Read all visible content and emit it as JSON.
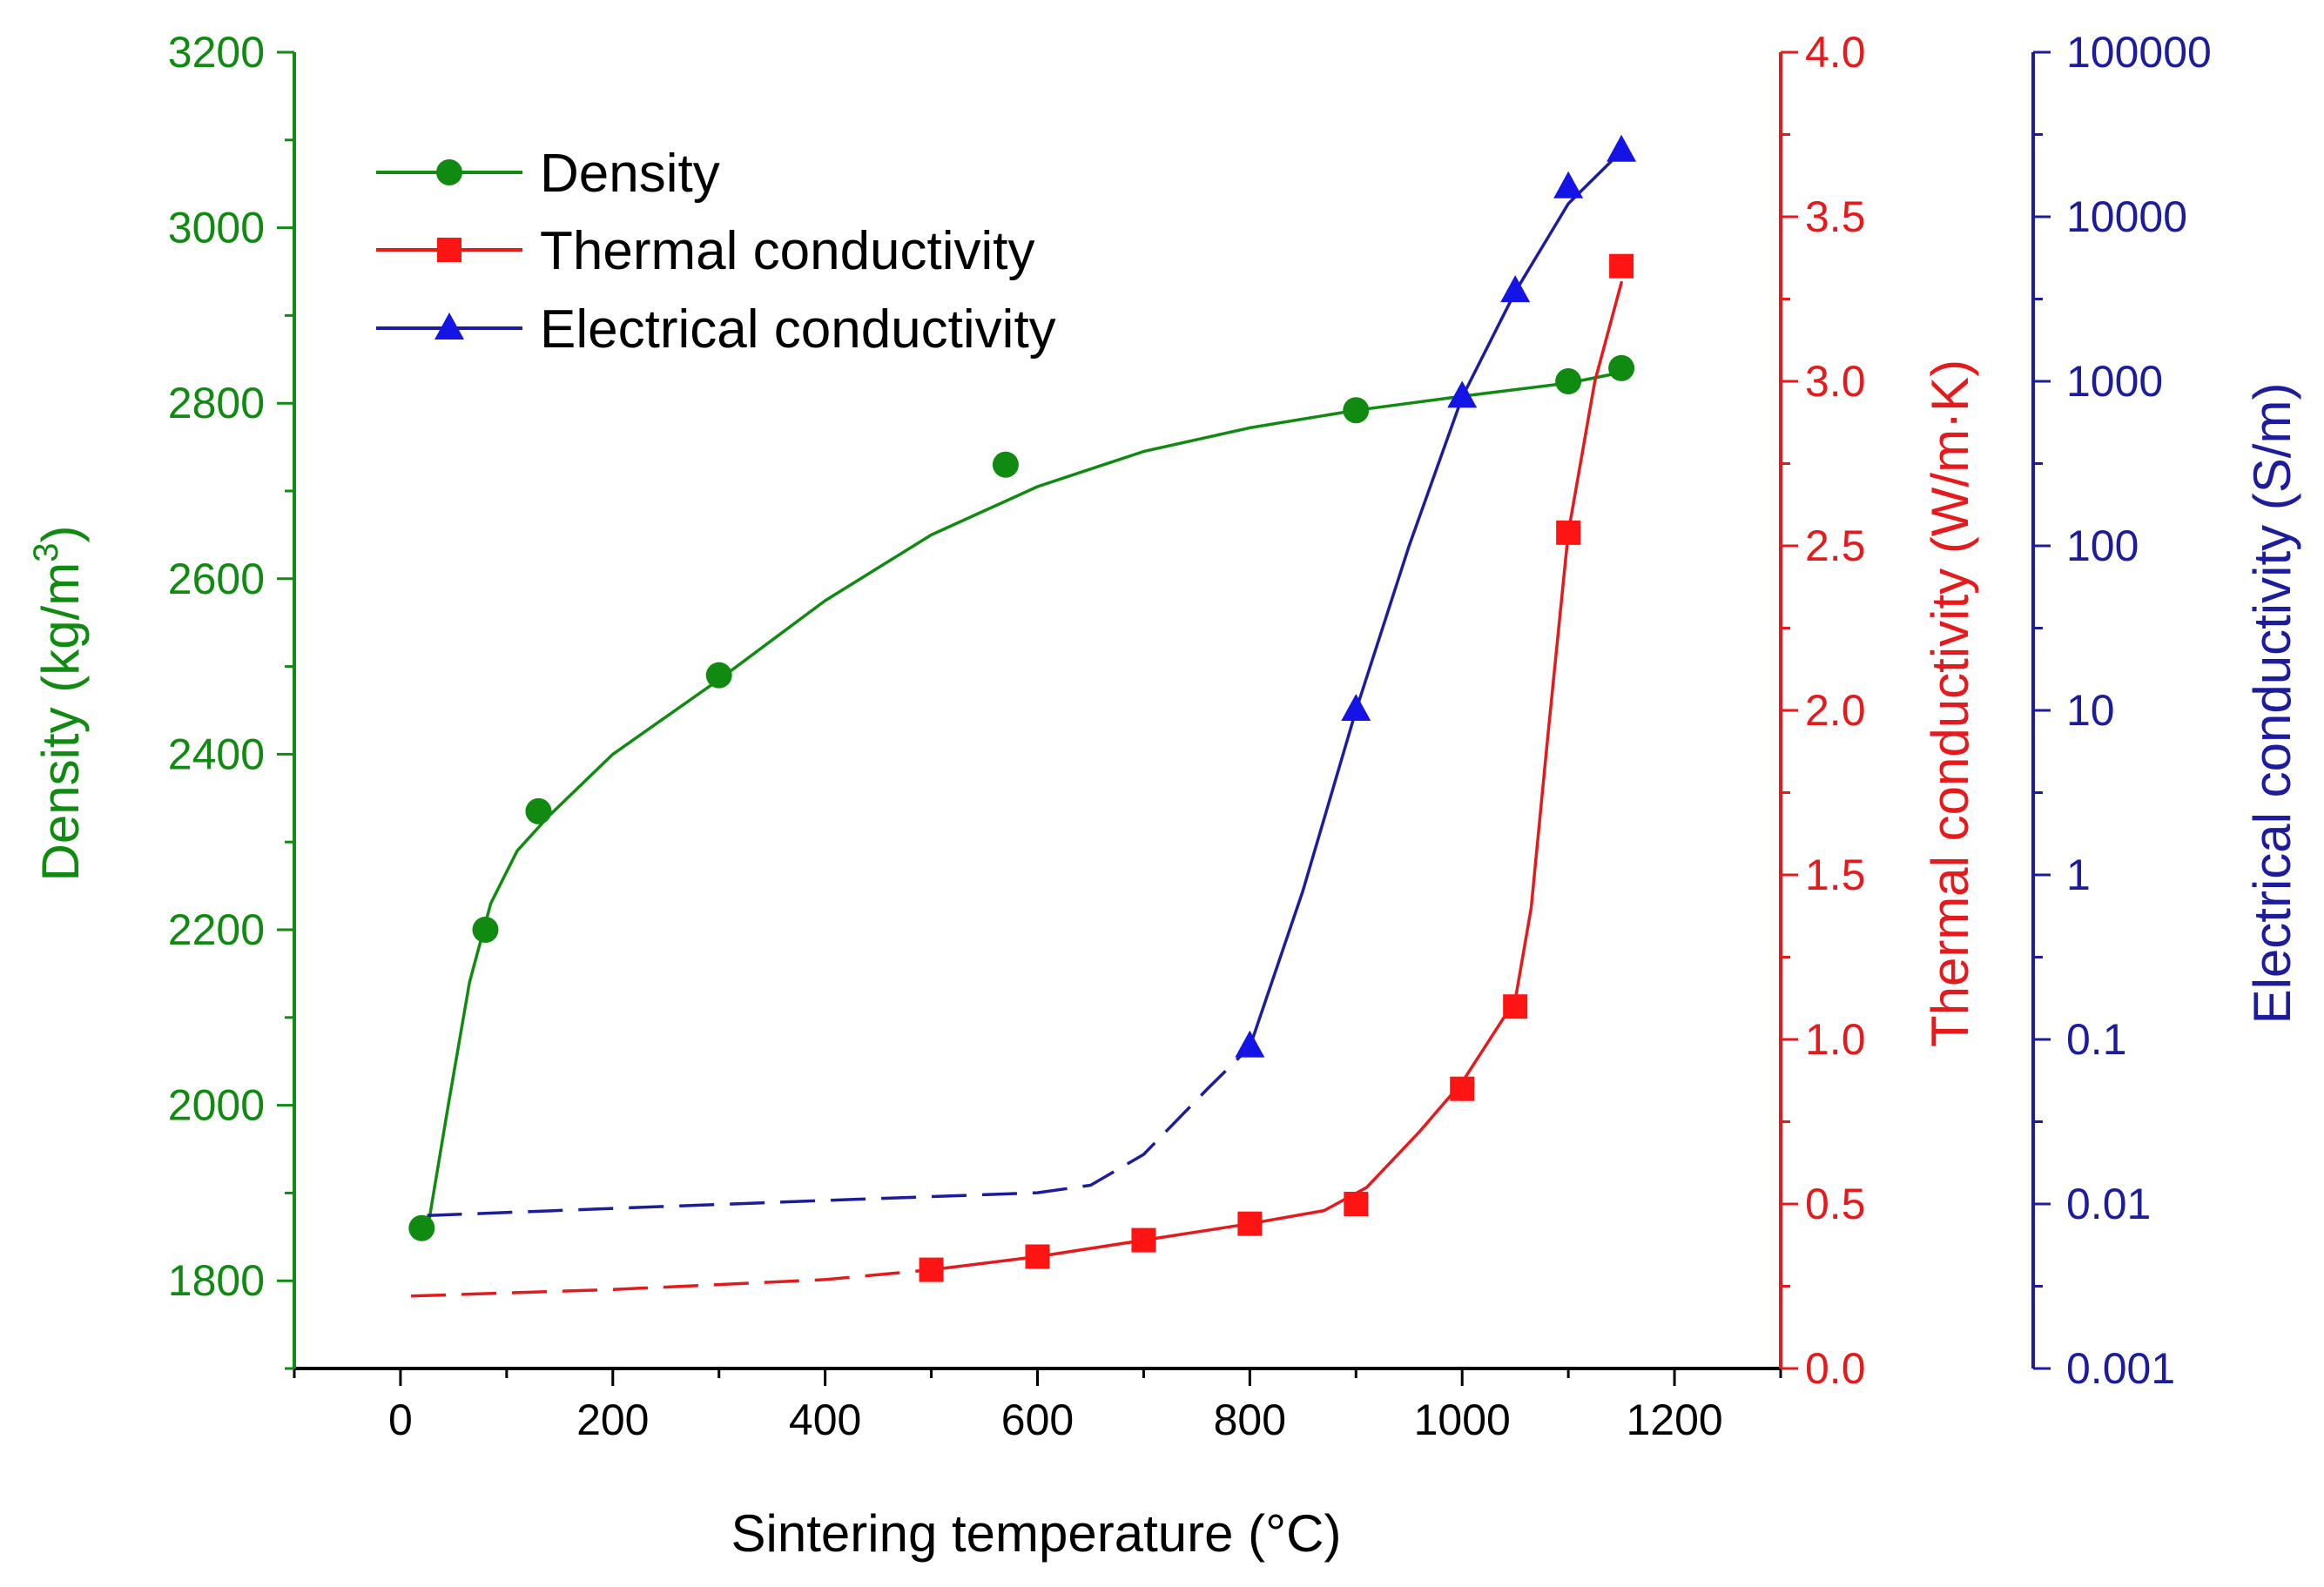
{
  "chart_data": {
    "type": "line",
    "xlabel": "Sintering temperature (°C)",
    "xlim": [
      -100,
      1300
    ],
    "xticks": [
      0,
      200,
      400,
      600,
      800,
      1000,
      1200
    ],
    "axes": {
      "density": {
        "label": "Density (kg/m",
        "label_sup": "3",
        "label_end": ")",
        "color": "#108A10",
        "ylim": [
          1700,
          3200
        ],
        "ticks": [
          1800,
          2000,
          2200,
          2400,
          2600,
          2800,
          3000,
          3200
        ]
      },
      "thermal": {
        "label": "Thermal conductivity (W/m·K)",
        "color": "#E41A1C",
        "ylim": [
          0.0,
          4.0
        ],
        "ticks": [
          "0.0",
          "0.5",
          "1.0",
          "1.5",
          "2.0",
          "2.5",
          "3.0",
          "3.5",
          "4.0"
        ]
      },
      "electrical": {
        "label": "Electrical conductivity (S/m)",
        "color": "#1C1C9C",
        "scale": "log",
        "ylim": [
          0.001,
          100000
        ],
        "ticks": [
          "0.001",
          "0.01",
          "0.1",
          "1",
          "10",
          "100",
          "1000",
          "10000",
          "100000"
        ]
      }
    },
    "series": [
      {
        "name": "Density",
        "axis": "density",
        "marker": "circle",
        "color": "#108A10",
        "points": [
          [
            20,
            1860
          ],
          [
            80,
            2200
          ],
          [
            130,
            2335
          ],
          [
            300,
            2490
          ],
          [
            570,
            2730
          ],
          [
            900,
            2792
          ],
          [
            1100,
            2825
          ],
          [
            1150,
            2840
          ]
        ],
        "curve": [
          [
            25,
            1855
          ],
          [
            45,
            2000
          ],
          [
            65,
            2140
          ],
          [
            85,
            2230
          ],
          [
            110,
            2290
          ],
          [
            140,
            2330
          ],
          [
            200,
            2400
          ],
          [
            300,
            2485
          ],
          [
            400,
            2575
          ],
          [
            500,
            2650
          ],
          [
            600,
            2705
          ],
          [
            700,
            2745
          ],
          [
            800,
            2772
          ],
          [
            900,
            2792
          ],
          [
            1000,
            2808
          ],
          [
            1100,
            2823
          ],
          [
            1150,
            2835
          ]
        ]
      },
      {
        "name": "Thermal conductivity",
        "axis": "thermal",
        "marker": "square",
        "color": "#E41A1C",
        "points": [
          [
            500,
            0.3
          ],
          [
            600,
            0.34
          ],
          [
            700,
            0.39
          ],
          [
            800,
            0.44
          ],
          [
            900,
            0.5
          ],
          [
            1000,
            0.85
          ],
          [
            1050,
            1.1
          ],
          [
            1100,
            2.54
          ],
          [
            1150,
            3.35
          ]
        ],
        "dashed_curve": [
          [
            10,
            0.22
          ],
          [
            200,
            0.24
          ],
          [
            400,
            0.27
          ],
          [
            500,
            0.3
          ]
        ],
        "curve": [
          [
            500,
            0.3
          ],
          [
            600,
            0.34
          ],
          [
            700,
            0.39
          ],
          [
            800,
            0.44
          ],
          [
            870,
            0.48
          ],
          [
            910,
            0.55
          ],
          [
            960,
            0.72
          ],
          [
            1000,
            0.87
          ],
          [
            1030,
            1.02
          ],
          [
            1050,
            1.12
          ],
          [
            1065,
            1.4
          ],
          [
            1080,
            1.9
          ],
          [
            1100,
            2.54
          ],
          [
            1125,
            3.0
          ],
          [
            1150,
            3.3
          ]
        ]
      },
      {
        "name": "Electrical conductivity",
        "axis": "electrical",
        "marker": "triangle",
        "color": "#1C1C9C",
        "points": [
          [
            800,
            0.09
          ],
          [
            900,
            10
          ],
          [
            1000,
            800
          ],
          [
            1050,
            3500
          ],
          [
            1100,
            15000
          ],
          [
            1150,
            25000
          ]
        ],
        "dashed_curve": [
          [
            25,
            0.0085
          ],
          [
            200,
            0.0094
          ],
          [
            400,
            0.0105
          ],
          [
            600,
            0.0117
          ],
          [
            650,
            0.013
          ],
          [
            700,
            0.02
          ],
          [
            760,
            0.05
          ],
          [
            800,
            0.09
          ]
        ],
        "curve": [
          [
            800,
            0.09
          ],
          [
            850,
            0.8
          ],
          [
            900,
            10
          ],
          [
            950,
            100
          ],
          [
            1000,
            800
          ],
          [
            1050,
            3500
          ],
          [
            1100,
            12000
          ],
          [
            1150,
            25000
          ]
        ]
      }
    ],
    "legend": {
      "position": "top-left",
      "entries": [
        "Density",
        "Thermal conductivity",
        "Electrical conductivity"
      ]
    }
  }
}
